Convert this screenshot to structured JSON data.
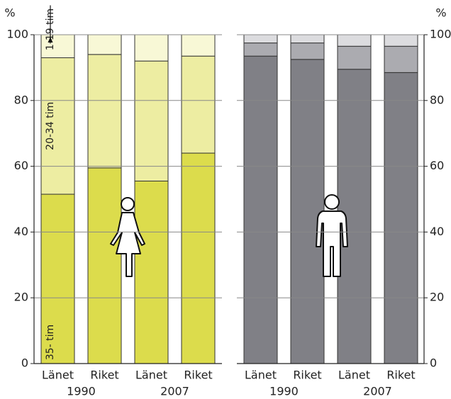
{
  "chart_data": [
    {
      "type": "bar",
      "stacked": true,
      "y_label": "%",
      "categories": [
        "Länet",
        "Riket",
        "Länet",
        "Riket"
      ],
      "groups": [
        "1990",
        "2007"
      ],
      "ylim": [
        0,
        100
      ],
      "yticks": [
        0,
        20,
        40,
        60,
        80,
        100
      ],
      "grid": true,
      "axis_side": "left",
      "series": [
        {
          "name": "35- tim",
          "color": "#dcdc4c",
          "values": [
            51.5,
            59.5,
            55.5,
            64
          ]
        },
        {
          "name": "20-34 tim",
          "color": "#ededa2",
          "values": [
            41.5,
            34.5,
            36.5,
            29.5
          ]
        },
        {
          "name": "1-19 tim",
          "color": "#f8f8d6",
          "values": [
            7,
            6,
            8,
            6.5
          ]
        }
      ]
    },
    {
      "type": "bar",
      "stacked": true,
      "y_label": "%",
      "categories": [
        "Länet",
        "Riket",
        "Länet",
        "Riket"
      ],
      "groups": [
        "1990",
        "2007"
      ],
      "ylim": [
        0,
        100
      ],
      "yticks": [
        0,
        20,
        40,
        60,
        80,
        100
      ],
      "grid": true,
      "axis_side": "right",
      "series": [
        {
          "color": "#808086",
          "values": [
            93.5,
            92.5,
            89.5,
            88.5
          ]
        },
        {
          "color": "#ababb0",
          "values": [
            4,
            5,
            7,
            8
          ]
        },
        {
          "color": "#dcdcdf",
          "values": [
            2.5,
            2.5,
            3.5,
            3.5
          ]
        }
      ]
    }
  ]
}
